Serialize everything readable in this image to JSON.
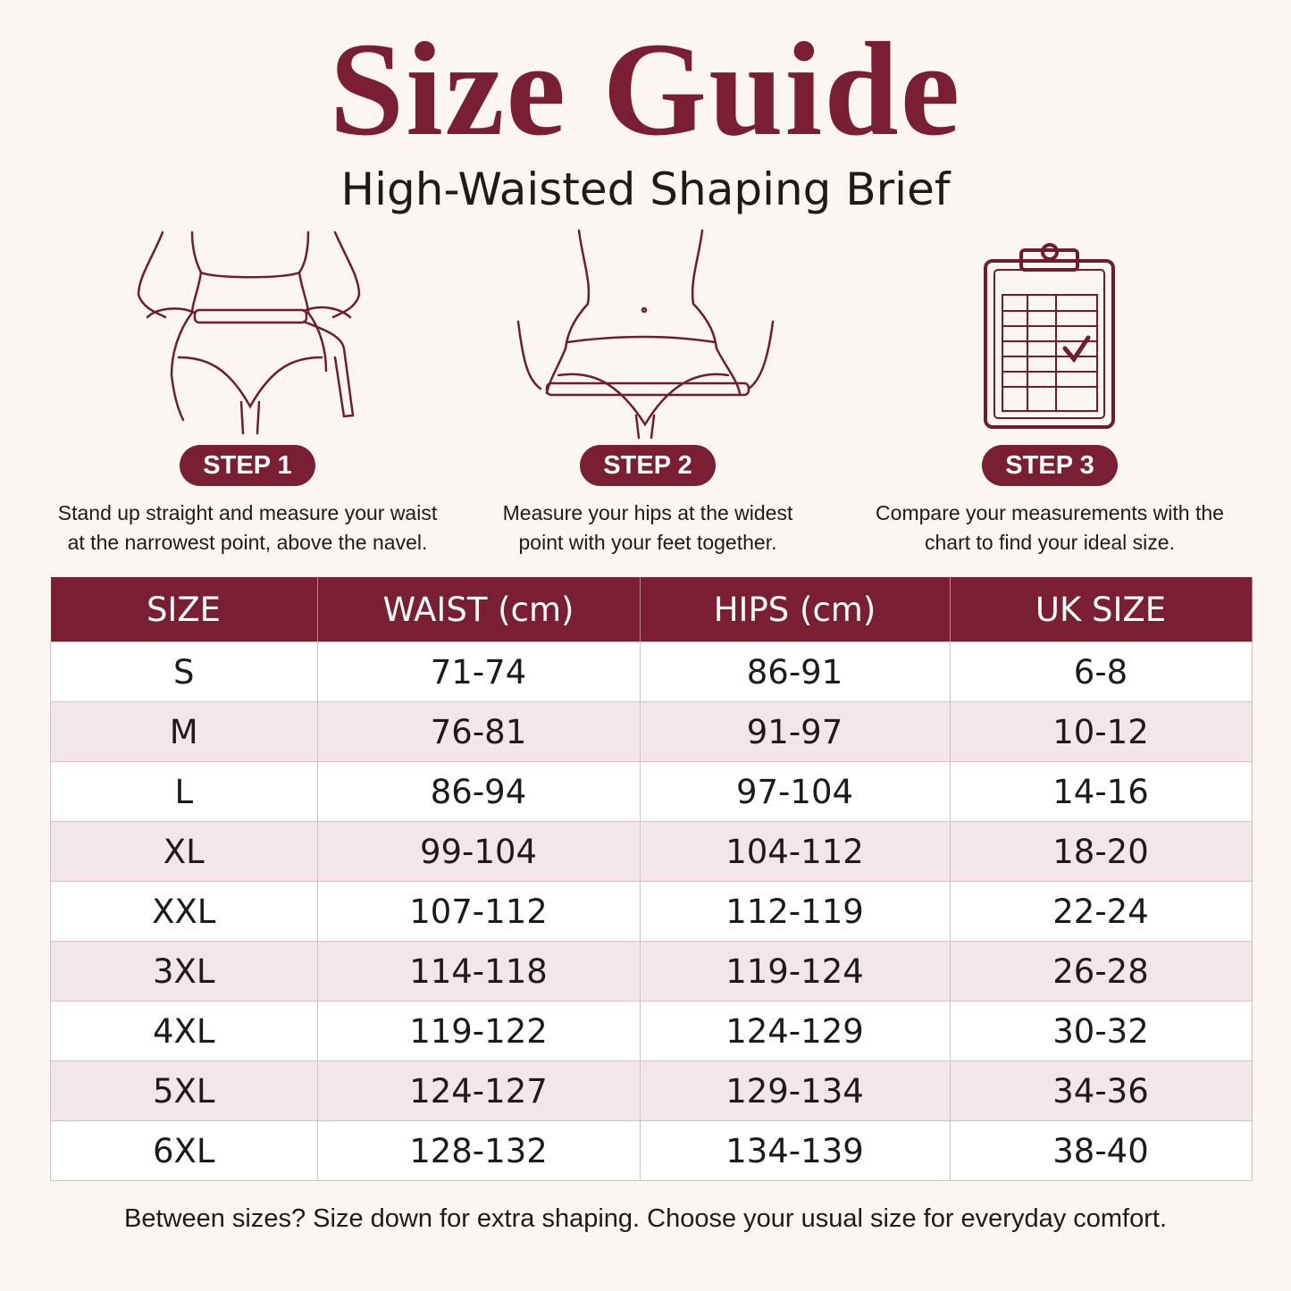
{
  "header": {
    "title": "Size Guide",
    "subtitle": "High-Waisted Shaping Brief"
  },
  "steps": [
    {
      "label": "STEP 1",
      "text": "Stand up straight and measure your waist at the narrowest point, above the navel."
    },
    {
      "label": "STEP 2",
      "text": "Measure your hips at the widest point with your feet together."
    },
    {
      "label": "STEP 3",
      "text": "Compare your measurements with the chart to find your ideal size."
    }
  ],
  "table": {
    "columns": [
      "SIZE",
      "WAIST (cm)",
      "HIPS (cm)",
      "UK SIZE"
    ],
    "rows": [
      [
        "S",
        "71-74",
        "86-91",
        "6-8"
      ],
      [
        "M",
        "76-81",
        "91-97",
        "10-12"
      ],
      [
        "L",
        "86-94",
        "97-104",
        "14-16"
      ],
      [
        "XL",
        "99-104",
        "104-112",
        "18-20"
      ],
      [
        "XXL",
        "107-112",
        "112-119",
        "22-24"
      ],
      [
        "3XL",
        "114-118",
        "119-124",
        "26-28"
      ],
      [
        "4XL",
        "119-122",
        "124-129",
        "30-32"
      ],
      [
        "5XL",
        "124-127",
        "129-134",
        "34-36"
      ],
      [
        "6XL",
        "128-132",
        "134-139",
        "38-40"
      ]
    ]
  },
  "footer": {
    "note": "Between sizes? Size down for extra shaping. Choose your usual size for everyday comfort."
  }
}
